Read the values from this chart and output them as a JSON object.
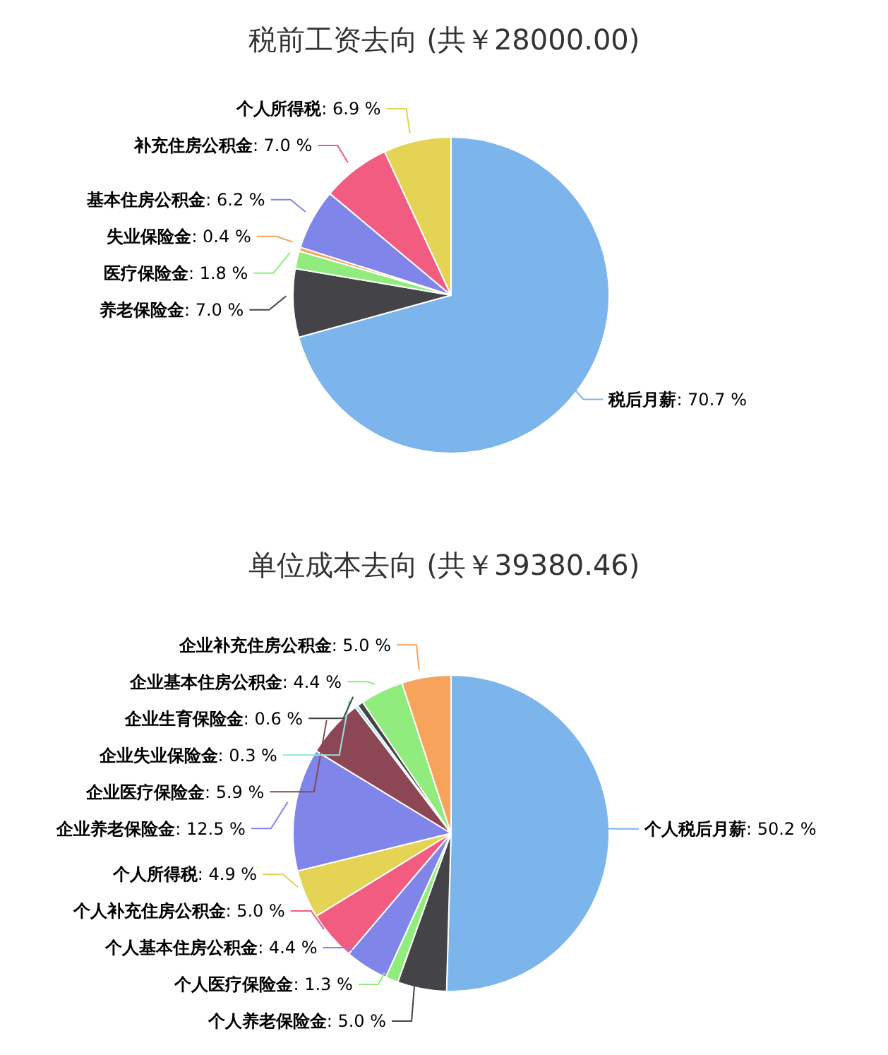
{
  "chart_data": [
    {
      "type": "pie",
      "title": "税前工资去向 (共￥28000.00)",
      "categories": [
        "税后月薪",
        "养老保险金",
        "医疗保险金",
        "失业保险金",
        "基本住房公积金",
        "补充住房公积金",
        "个人所得税"
      ],
      "values": [
        70.7,
        7.0,
        1.8,
        0.4,
        6.2,
        7.0,
        6.9
      ],
      "value_labels": [
        ": 70.7 %",
        ": 7.0 %",
        ": 1.8 %",
        ": 0.4 %",
        ": 6.2 %",
        ": 7.0 %",
        ": 6.9 %"
      ],
      "colors": [
        "#7cb5ec",
        "#434348",
        "#90ed7d",
        "#f7a35c",
        "#8085e9",
        "#f15c80",
        "#e4d354"
      ]
    },
    {
      "type": "pie",
      "title": "单位成本去向 (共￥39380.46)",
      "categories": [
        "个人税后月薪",
        "个人养老保险金",
        "个人医疗保险金",
        "个人基本住房公积金",
        "个人补充住房公积金",
        "个人所得税",
        "企业养老保险金",
        "企业医疗保险金",
        "企业失业保险金",
        "企业生育保险金",
        "企业基本住房公积金",
        "企业补充住房公积金"
      ],
      "values": [
        50.2,
        5.0,
        1.3,
        4.4,
        5.0,
        4.9,
        12.5,
        5.9,
        0.3,
        0.6,
        4.4,
        5.0
      ],
      "value_labels": [
        ": 50.2 %",
        ": 5.0 %",
        ": 1.3 %",
        ": 4.4 %",
        ": 5.0 %",
        ": 4.9 %",
        ": 12.5 %",
        ": 5.9 %",
        ": 0.3 %",
        ": 0.6 %",
        ": 4.4 %",
        ": 5.0 %"
      ],
      "colors": [
        "#7cb5ec",
        "#434348",
        "#90ed7d",
        "#8085e9",
        "#f15c80",
        "#e4d354",
        "#8085e9",
        "#8d4653",
        "#91e8e1",
        "#434348",
        "#90ed7d",
        "#f7a35c"
      ]
    }
  ]
}
